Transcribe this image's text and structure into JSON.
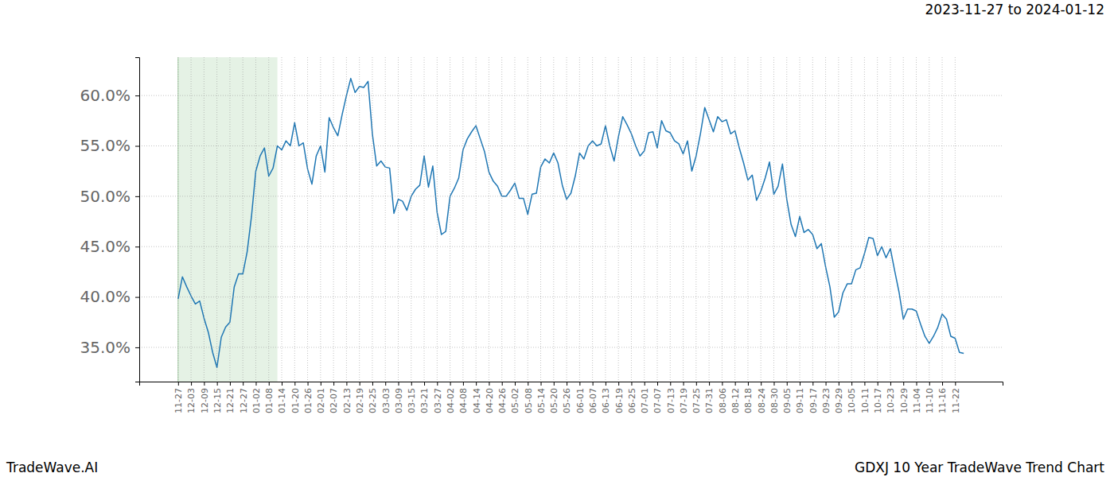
{
  "chart_data": {
    "type": "line",
    "color": "#1f77b4",
    "grid": true,
    "annotations": [
      {
        "text": "2023-11-27 to 2024-01-12",
        "x": [
          0,
          23
        ]
      },
      {
        "text": "TradeWave.AI"
      },
      {
        "text": "GDXJ 10 Year TradeWave Trend Chart"
      }
    ],
    "categories": [
      "11-27",
      null,
      null,
      "12-03",
      null,
      null,
      "12-09",
      null,
      null,
      "12-15",
      null,
      null,
      "12-21",
      null,
      null,
      "12-27",
      null,
      null,
      "01-02",
      null,
      null,
      "01-08",
      null,
      null,
      "01-14",
      null,
      null,
      "01-20",
      null,
      null,
      "01-26",
      null,
      null,
      "02-01",
      null,
      null,
      "02-07",
      null,
      null,
      "02-13",
      null,
      null,
      "02-19",
      null,
      null,
      "02-25",
      null,
      null,
      "03-03",
      null,
      null,
      "03-09",
      null,
      null,
      "03-15",
      null,
      null,
      "03-21",
      null,
      null,
      "03-27",
      null,
      null,
      "04-02",
      null,
      null,
      "04-08",
      null,
      null,
      "04-14",
      null,
      null,
      "04-20",
      null,
      null,
      "04-26",
      null,
      null,
      "05-02",
      null,
      null,
      "05-08",
      null,
      null,
      "05-14",
      null,
      null,
      "05-20",
      null,
      null,
      "05-26",
      null,
      null,
      "06-01",
      null,
      null,
      "06-07",
      null,
      null,
      "06-13",
      null,
      null,
      "06-19",
      null,
      null,
      "06-25",
      null,
      null,
      "07-01",
      null,
      null,
      "07-07",
      null,
      null,
      "07-13",
      null,
      null,
      "07-19",
      null,
      null,
      "07-25",
      null,
      null,
      "07-31",
      null,
      null,
      "08-06",
      null,
      null,
      "08-12",
      null,
      null,
      "08-18",
      null,
      null,
      "08-24",
      null,
      null,
      "08-30",
      null,
      null,
      "09-05",
      null,
      null,
      "09-11",
      null,
      null,
      "09-17",
      null,
      null,
      "09-23",
      null,
      null,
      "09-29",
      null,
      null,
      "10-05",
      null,
      null,
      "10-11",
      null,
      null,
      "10-17",
      null,
      null,
      "10-23",
      null,
      null,
      "10-29",
      null,
      null,
      "11-04",
      null,
      null,
      "11-10",
      null,
      null,
      "11-16",
      null,
      null,
      "11-22",
      null,
      null
    ],
    "values": [
      39.8,
      42.0,
      41.0,
      40.1,
      39.3,
      39.6,
      37.9,
      36.5,
      34.5,
      33.0,
      36.0,
      37.0,
      37.5,
      41.0,
      42.3,
      42.3,
      44.5,
      48.0,
      52.5,
      54.0,
      54.8,
      52.0,
      52.8,
      55.0,
      54.6,
      55.5,
      55.0,
      57.3,
      55.0,
      55.3,
      52.7,
      51.2,
      54.0,
      55.0,
      52.4,
      57.8,
      56.8,
      56.0,
      58.1,
      60.0,
      61.7,
      60.3,
      60.9,
      60.8,
      61.4,
      56.2,
      53.0,
      53.5,
      52.9,
      52.8,
      48.3,
      49.7,
      49.5,
      48.6,
      50.0,
      50.7,
      51.1,
      54.0,
      50.9,
      53.0,
      48.4,
      46.2,
      46.5,
      50.0,
      50.8,
      51.8,
      54.6,
      55.7,
      56.4,
      57.0,
      55.7,
      54.4,
      52.4,
      51.5,
      51.0,
      50.0,
      50.0,
      50.6,
      51.3,
      49.8,
      49.8,
      48.2,
      50.2,
      50.3,
      52.9,
      53.7,
      53.3,
      54.3,
      53.3,
      51.1,
      49.7,
      50.3,
      52.0,
      54.3,
      53.7,
      55.0,
      55.5,
      55.0,
      55.2,
      57.0,
      55.0,
      53.5,
      55.9,
      57.9,
      57.1,
      56.2,
      55.0,
      54.0,
      54.5,
      56.3,
      56.4,
      54.8,
      57.5,
      56.5,
      56.3,
      55.5,
      55.2,
      54.2,
      55.5,
      52.5,
      54.0,
      56.2,
      58.8,
      57.6,
      56.4,
      57.9,
      57.4,
      57.6,
      56.2,
      56.5,
      54.8,
      53.3,
      51.6,
      52.1,
      49.6,
      50.5,
      51.8,
      53.4,
      50.2,
      51.0,
      53.2,
      49.7,
      47.2,
      46.0,
      48.0,
      46.4,
      46.7,
      46.2,
      44.8,
      45.3,
      43.0,
      41.0,
      38.0,
      38.5,
      40.4,
      41.3,
      41.3,
      42.7,
      42.9,
      44.3,
      45.9,
      45.8,
      44.1,
      45.0,
      43.9,
      44.8,
      42.6,
      40.5,
      37.8,
      38.8,
      38.8,
      38.6,
      37.3,
      36.1,
      35.4,
      36.1,
      37.0,
      38.3,
      37.8,
      36.1,
      35.9,
      34.5,
      34.4
    ],
    "ylim": [
      31.6,
      63.8
    ],
    "yticks": [
      {
        "value": 35,
        "label": "35.0%"
      },
      {
        "value": 40,
        "label": "40.0%"
      },
      {
        "value": 45,
        "label": "45.0%"
      },
      {
        "value": 50,
        "label": "50.0%"
      },
      {
        "value": 55,
        "label": "55.0%"
      },
      {
        "value": 60,
        "label": "60.0%"
      }
    ]
  }
}
